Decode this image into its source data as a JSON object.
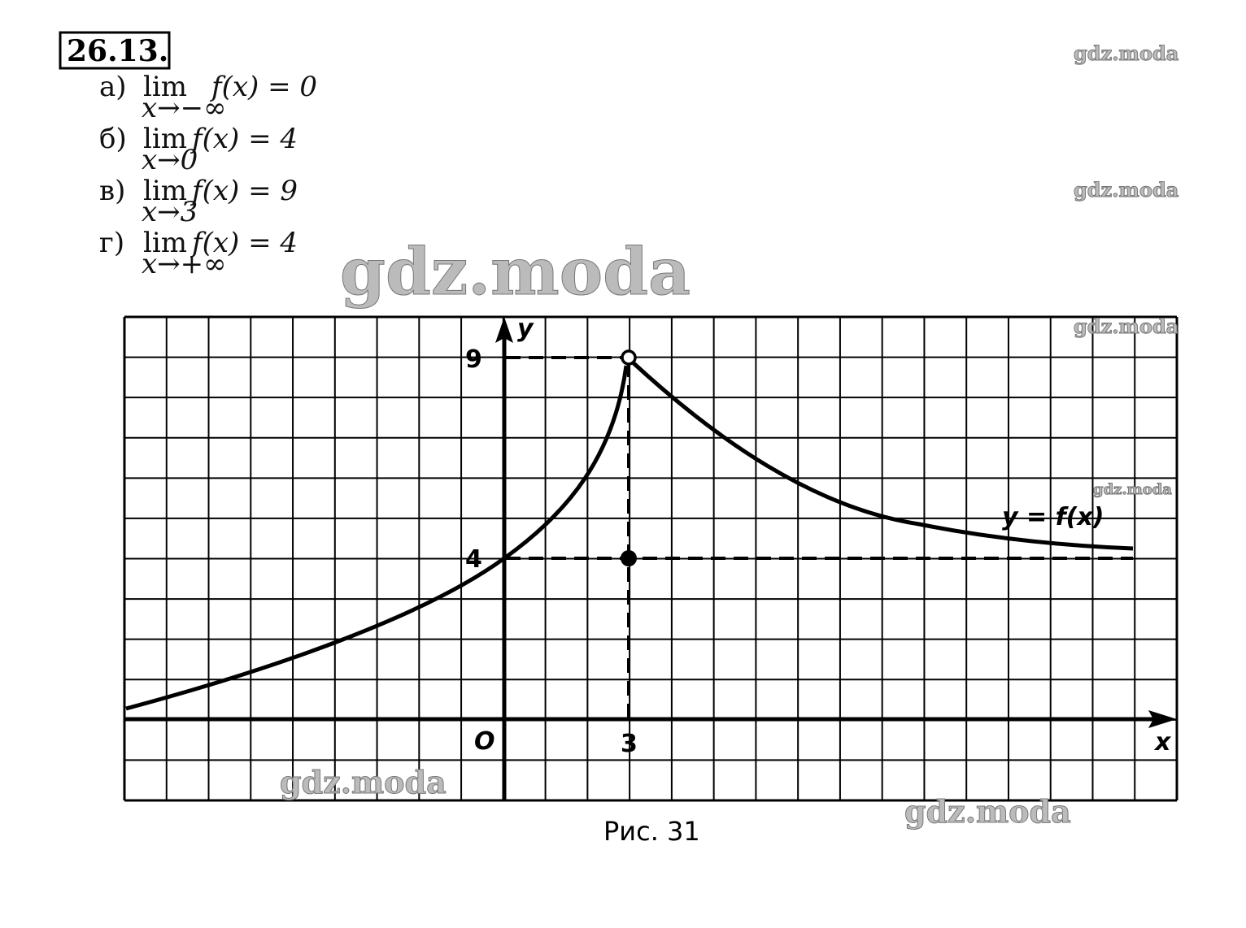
{
  "problem_number": "26.13.",
  "items": [
    {
      "label": "а)",
      "limit": "lim",
      "subscript": "x→−∞",
      "expression": "f(x) = 0"
    },
    {
      "label": "б)",
      "limit": "lim",
      "subscript": "x→0",
      "expression": "f(x) = 4"
    },
    {
      "label": "в)",
      "limit": "lim",
      "subscript": "x→3",
      "expression": "f(x) = 9"
    },
    {
      "label": "г)",
      "limit": "lim",
      "subscript": "x→+∞",
      "expression": "f(x) = 4"
    }
  ],
  "figure": {
    "y_axis_label": "y",
    "x_axis_label": "x",
    "origin_label": "O",
    "y_tick_labels": [
      "9",
      "4"
    ],
    "x_tick_labels": [
      "3"
    ],
    "curve_label": "y = f(x)",
    "caption": "Рис. 31"
  },
  "watermarks": [
    "gdz.moda",
    "gdz.moda",
    "gdz.moda",
    "gdz.moda",
    "gdz.moda",
    "gdz.moda",
    "gdz.moda"
  ]
}
